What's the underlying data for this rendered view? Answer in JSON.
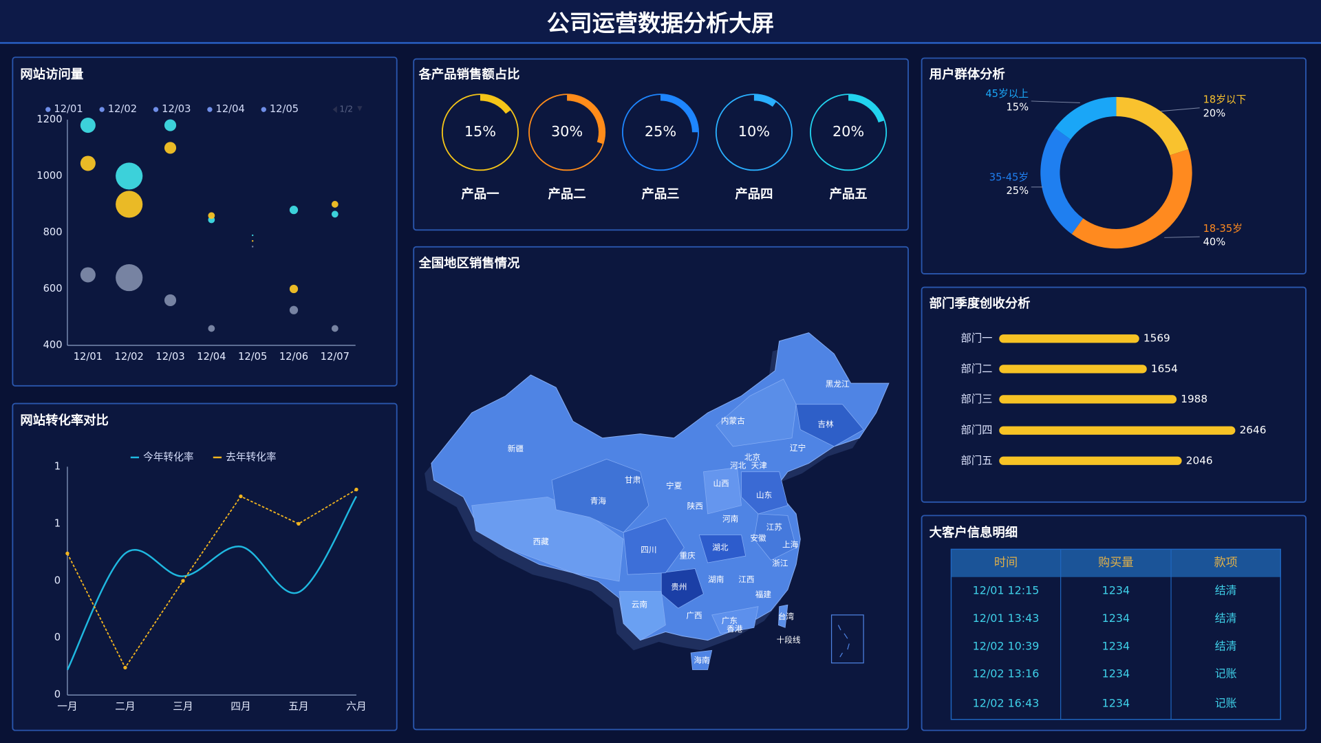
{
  "title": "公司运营数据分析大屏",
  "chart_data": [
    {
      "type": "bubble",
      "title": "网站访问量",
      "legend": [
        "12/01",
        "12/02",
        "12/03",
        "12/04",
        "12/05"
      ],
      "legend_color": "#6f8ee8",
      "legend_page": "1/2",
      "categories": [
        "12/01",
        "12/02",
        "12/03",
        "12/04",
        "12/05",
        "12/06",
        "12/07"
      ],
      "series": [
        {
          "color": "#3fdbe3",
          "values": [
            1180,
            1000,
            1180,
            845,
            790,
            880,
            865
          ],
          "sizes": [
            9,
            16,
            7,
            4,
            1,
            5,
            4
          ]
        },
        {
          "color": "#f7c325",
          "values": [
            1045,
            900,
            1100,
            860,
            770,
            600,
            900
          ],
          "sizes": [
            9,
            16,
            7,
            4,
            1,
            5,
            4
          ]
        },
        {
          "color": "#7d89a8",
          "values": [
            650,
            640,
            560,
            460,
            750,
            525,
            460
          ],
          "sizes": [
            9,
            16,
            7,
            4,
            1,
            5,
            4
          ]
        }
      ],
      "ylim": [
        400,
        1200
      ],
      "yticks": [
        400,
        600,
        800,
        1000,
        1200
      ]
    },
    {
      "type": "line",
      "title": "网站转化率对比",
      "categories": [
        "一月",
        "二月",
        "三月",
        "四月",
        "五月",
        "六月"
      ],
      "series": [
        {
          "name": "今年转化率",
          "color": "#1fb8e0",
          "smooth": true,
          "dashed": false,
          "values": [
            0.11,
            0.62,
            0.52,
            0.65,
            0.45,
            0.87
          ]
        },
        {
          "name": "去年转化率",
          "color": "#f2b51f",
          "smooth": false,
          "dashed": true,
          "values": [
            0.62,
            0.12,
            0.5,
            0.87,
            0.75,
            0.9
          ]
        }
      ],
      "ylim": [
        0,
        1
      ],
      "yticks": [
        0,
        {
          "value": 0.25,
          "label": "0"
        },
        {
          "value": 0.5,
          "label": "0"
        },
        {
          "value": 0.75,
          "label": "1"
        },
        1
      ]
    },
    {
      "type": "gauge",
      "title": "各产品销售额占比",
      "categories": [
        "产品一",
        "产品二",
        "产品三",
        "产品四",
        "产品五"
      ],
      "values": [
        15,
        30,
        25,
        10,
        20
      ],
      "value_labels": [
        "15%",
        "30%",
        "25%",
        "10%",
        "20%"
      ],
      "colors": [
        "#f5c518",
        "#ff8c1a",
        "#1e86ff",
        "#2ab0ff",
        "#22d3ee"
      ],
      "ylim": [
        0,
        100
      ]
    },
    {
      "type": "pie",
      "title": "用户群体分析",
      "categories": [
        "18岁以下",
        "18-35岁",
        "35-45岁",
        "45岁以上"
      ],
      "values": [
        20,
        40,
        25,
        15
      ],
      "value_labels": [
        "20%",
        "40%",
        "25%",
        "15%"
      ],
      "colors": [
        "#f9c22e",
        "#ff8a1f",
        "#1f7ff0",
        "#1aa6f7"
      ]
    },
    {
      "type": "bar",
      "title": "部门季度创收分析",
      "orientation": "horizontal",
      "categories": [
        "部门一",
        "部门二",
        "部门三",
        "部门四",
        "部门五"
      ],
      "values": [
        1569,
        1654,
        1988,
        2646,
        2046
      ],
      "color": "#f7c325",
      "xlim": [
        0,
        2700
      ]
    }
  ],
  "map": {
    "title": "全国地区销售情况",
    "regions": [
      "黑龙江",
      "吉林",
      "内蒙古",
      "辽宁",
      "新疆",
      "北京",
      "河北",
      "天津",
      "甘肃",
      "宁夏",
      "山西",
      "山东",
      "青海",
      "陕西",
      "河南",
      "江苏",
      "西藏",
      "安徽",
      "上海",
      "四川",
      "湖北",
      "重庆",
      "浙江",
      "贵州",
      "湖南",
      "江西",
      "福建",
      "云南",
      "广西",
      "广东",
      "台湾",
      "香港",
      "十段线",
      "海南"
    ]
  },
  "table": {
    "title": "大客户信息明细",
    "columns": [
      "时间",
      "购买量",
      "款项"
    ],
    "rows": [
      [
        "12/01 12:15",
        1234,
        "结清"
      ],
      [
        "12/01 13:43",
        1234,
        "结清"
      ],
      [
        "12/02 10:39",
        1234,
        "结清"
      ],
      [
        "12/02 13:16",
        1234,
        "记账"
      ],
      [
        "12/02 16:43",
        1234,
        "记账"
      ]
    ]
  }
}
